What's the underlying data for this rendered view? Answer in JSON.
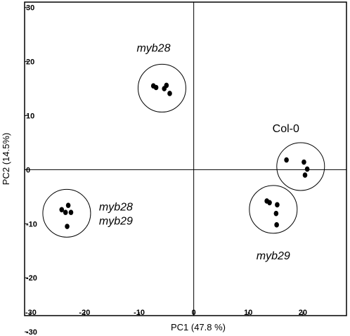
{
  "chart_data": {
    "type": "scatter",
    "xlabel": "PC1 (47.8 %)",
    "ylabel": "PC2 (14.5%)",
    "xlim": [
      -31,
      28
    ],
    "ylim": [
      -27,
      31
    ],
    "x_ticks": [
      {
        "value": -30,
        "label": "-30"
      },
      {
        "value": -20,
        "label": "-20"
      },
      {
        "value": -10,
        "label": "-10"
      },
      {
        "value": 0,
        "label": "0"
      },
      {
        "value": 10,
        "label": "10"
      },
      {
        "value": 20,
        "label": "20"
      }
    ],
    "y_ticks": [
      {
        "value": 30,
        "label": "30"
      },
      {
        "value": 20,
        "label": "20"
      },
      {
        "value": 10,
        "label": "10"
      },
      {
        "value": 0,
        "label": "0"
      },
      {
        "value": -10,
        "label": "-10"
      },
      {
        "value": -20,
        "label": "-20"
      },
      {
        "value": -30,
        "label": "-30"
      }
    ],
    "grid": false,
    "groups": [
      {
        "label_lines": [
          "myb28"
        ],
        "italic": true,
        "points": [
          [
            -7.4,
            15.5
          ],
          [
            -6.9,
            15.2
          ],
          [
            -5.4,
            15.0
          ],
          [
            -5.0,
            15.6
          ],
          [
            -4.4,
            14.1
          ]
        ]
      },
      {
        "label_lines": [
          "Col-0"
        ],
        "italic": false,
        "points": [
          [
            17.0,
            1.8
          ],
          [
            20.2,
            1.4
          ],
          [
            20.8,
            0.1
          ],
          [
            20.4,
            -1.0
          ]
        ]
      },
      {
        "label_lines": [
          "myb29"
        ],
        "italic": true,
        "points": [
          [
            13.4,
            -5.8
          ],
          [
            13.9,
            -6.1
          ],
          [
            15.3,
            -6.5
          ],
          [
            15.1,
            -8.1
          ],
          [
            15.2,
            -10.2
          ]
        ]
      },
      {
        "label_lines": [
          "myb28",
          "myb29"
        ],
        "italic": true,
        "points": [
          [
            -24.2,
            -7.4
          ],
          [
            -23.5,
            -7.9
          ],
          [
            -23.0,
            -6.6
          ],
          [
            -22.5,
            -7.9
          ],
          [
            -23.2,
            -10.5
          ]
        ]
      }
    ]
  }
}
